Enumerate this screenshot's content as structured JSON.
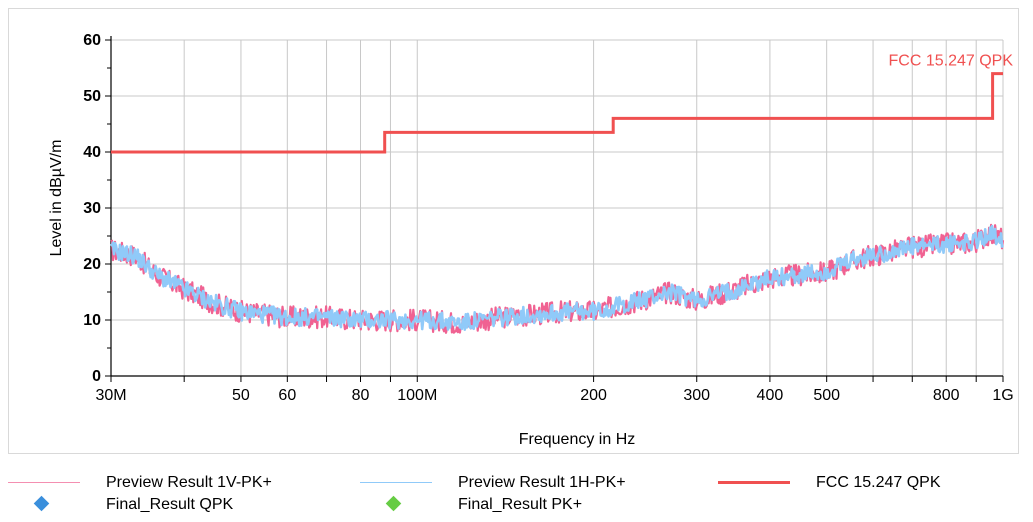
{
  "chart_data": {
    "type": "line",
    "xlabel": "Frequency in Hz",
    "ylabel": "Level in dBµV/m",
    "x_scale": "log",
    "xlim": [
      30000000,
      1000000000
    ],
    "ylim": [
      0,
      60
    ],
    "grid": true,
    "x_ticks": [
      {
        "value": 30000000,
        "label": "30M"
      },
      {
        "value": 50000000,
        "label": "50"
      },
      {
        "value": 60000000,
        "label": "60"
      },
      {
        "value": 80000000,
        "label": "80"
      },
      {
        "value": 100000000,
        "label": "100M"
      },
      {
        "value": 200000000,
        "label": "200"
      },
      {
        "value": 300000000,
        "label": "300"
      },
      {
        "value": 400000000,
        "label": "400"
      },
      {
        "value": 500000000,
        "label": "500"
      },
      {
        "value": 800000000,
        "label": "800"
      },
      {
        "value": 1000000000,
        "label": "1G"
      }
    ],
    "x_grid": [
      30000000,
      40000000,
      50000000,
      60000000,
      70000000,
      80000000,
      90000000,
      100000000,
      200000000,
      300000000,
      400000000,
      500000000,
      600000000,
      700000000,
      800000000,
      900000000,
      1000000000
    ],
    "y_ticks": [
      0,
      10,
      20,
      30,
      40,
      50,
      60
    ],
    "y_minor": [
      5,
      15,
      25,
      35,
      45,
      55
    ],
    "legend_position": "bottom",
    "series": [
      {
        "name": "Preview Result 1V-PK+",
        "color": "#f06292",
        "x": [
          30000000,
          33000000,
          36000000,
          40000000,
          45000000,
          50000000,
          55000000,
          60000000,
          70000000,
          80000000,
          90000000,
          100000000,
          120000000,
          140000000,
          160000000,
          180000000,
          200000000,
          220000000,
          250000000,
          270000000,
          300000000,
          350000000,
          400000000,
          450000000,
          500000000,
          550000000,
          600000000,
          700000000,
          800000000,
          900000000,
          950000000,
          1000000000
        ],
        "y": [
          22.5,
          21.5,
          18,
          15.5,
          13,
          11.5,
          11,
          10.5,
          10.5,
          10,
          10,
          10,
          9.5,
          10.5,
          11,
          11.5,
          11.5,
          12.5,
          14,
          15,
          13.5,
          15.5,
          17.5,
          18,
          18.5,
          20.5,
          21.5,
          23,
          23.5,
          24,
          25.5,
          24.5
        ]
      },
      {
        "name": "Preview Result 1H-PK+",
        "color": "#90caf9",
        "x": [
          30000000,
          33000000,
          36000000,
          40000000,
          45000000,
          50000000,
          55000000,
          60000000,
          70000000,
          80000000,
          90000000,
          100000000,
          120000000,
          140000000,
          160000000,
          180000000,
          200000000,
          220000000,
          250000000,
          270000000,
          300000000,
          350000000,
          400000000,
          450000000,
          500000000,
          550000000,
          600000000,
          700000000,
          800000000,
          900000000,
          950000000,
          1000000000
        ],
        "y": [
          22.5,
          21.5,
          18,
          15.5,
          13,
          11.5,
          11,
          10.5,
          10.5,
          10,
          10,
          10,
          9.5,
          10.5,
          11,
          11.5,
          11.5,
          12.5,
          14,
          15,
          13.5,
          15.5,
          17.5,
          18,
          18.5,
          20.5,
          21.5,
          23,
          23.5,
          24,
          25.5,
          24.5
        ]
      },
      {
        "name": "FCC 15.247 QPK",
        "color": "#f05050",
        "step": true,
        "x": [
          30000000,
          88000000,
          88000000,
          216000000,
          216000000,
          960000000,
          960000000,
          1000000000
        ],
        "y": [
          40,
          40,
          43.5,
          43.5,
          46,
          46,
          54,
          54
        ]
      }
    ],
    "annotations": [
      {
        "text": "FCC 15.247 QPK",
        "x": 1000000000,
        "y": 54,
        "color": "#f05050"
      }
    ]
  },
  "legend": {
    "items": [
      {
        "label": "Preview Result 1V-PK+",
        "kind": "line",
        "color": "#f48fb1"
      },
      {
        "label": "Preview Result 1H-PK+",
        "kind": "line",
        "color": "#90caf9"
      },
      {
        "label": "FCC 15.247 QPK",
        "kind": "line-thick",
        "color": "#f05050"
      },
      {
        "label": "Final_Result QPK",
        "kind": "diamond",
        "color": "#3a8fdc"
      },
      {
        "label": "Final_Result PK+",
        "kind": "diamond",
        "color": "#66cc44"
      }
    ]
  }
}
